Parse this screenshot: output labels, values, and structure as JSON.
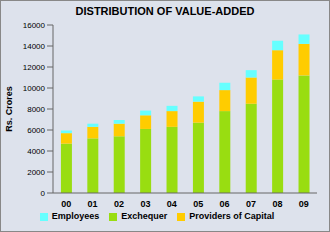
{
  "chart_data": {
    "type": "bar",
    "title": "DISTRIBUTION OF VALUE-ADDED",
    "y_label": "Rs. Crores",
    "categories": [
      "00",
      "01",
      "02",
      "03",
      "04",
      "05",
      "06",
      "07",
      "08",
      "09"
    ],
    "series": [
      {
        "name": "Exchequer",
        "color": "#99dd11",
        "values": [
          4700,
          5200,
          5400,
          6100,
          6300,
          6700,
          7800,
          8500,
          10800,
          11200
        ]
      },
      {
        "name": "Providers of Capital",
        "color": "#ffcc00",
        "values": [
          1000,
          1100,
          1200,
          1300,
          1500,
          2000,
          2000,
          2500,
          2800,
          3000
        ]
      },
      {
        "name": "Employees",
        "color": "#66ffff",
        "values": [
          250,
          300,
          350,
          450,
          500,
          500,
          700,
          700,
          900,
          900
        ]
      }
    ],
    "ylim": [
      0,
      16000
    ],
    "yticks": [
      0,
      2000,
      4000,
      6000,
      8000,
      10000,
      12000,
      14000,
      16000
    ],
    "stacked": true,
    "legend": "bottom",
    "grid": false
  }
}
